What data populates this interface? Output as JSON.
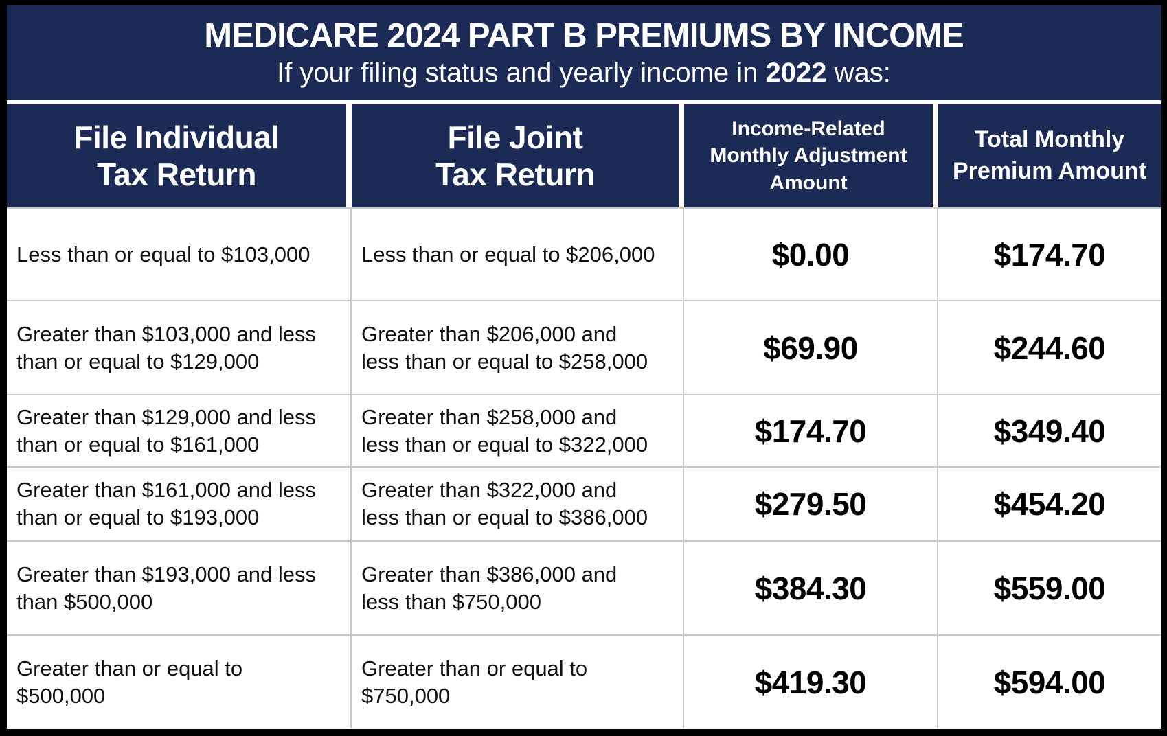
{
  "header": {
    "title": "MEDICARE 2024 PART B PREMIUMS BY INCOME",
    "subtitle_prefix": "If your filing status and yearly income in ",
    "subtitle_year": "2022",
    "subtitle_suffix": " was:"
  },
  "colors": {
    "navy": "#1c2b55",
    "frame": "#000000",
    "grid": "#c9c9c9",
    "text": "#111111",
    "header-text": "#ffffff"
  },
  "chart_data": {
    "type": "table",
    "title": "MEDICARE 2024 PART B PREMIUMS BY INCOME",
    "subtitle": "If your filing status and yearly income in 2022 was:",
    "columns": [
      "File Individual\nTax Return",
      "File Joint\nTax Return",
      "Income-Related\nMonthly Adjustment\nAmount",
      "Total Monthly\nPremium Amount"
    ],
    "rows": [
      {
        "individual": "Less than or equal to $103,000",
        "joint": "Less than or equal to $206,000",
        "adjustment": "$0.00",
        "total": "$174.70"
      },
      {
        "individual": "Greater than $103,000 and less\nthan or equal to $129,000",
        "joint": "Greater than $206,000 and\nless than or equal to $258,000",
        "adjustment": "$69.90",
        "total": "$244.60"
      },
      {
        "individual": "Greater than $129,000 and less\nthan or equal to $161,000",
        "joint": "Greater than $258,000 and\nless than or equal to $322,000",
        "adjustment": "$174.70",
        "total": "$349.40"
      },
      {
        "individual": "Greater than $161,000 and less\nthan or equal to $193,000",
        "joint": "Greater than $322,000 and\nless than or equal to $386,000",
        "adjustment": "$279.50",
        "total": "$454.20"
      },
      {
        "individual": "Greater than $193,000 and less\nthan $500,000",
        "joint": "Greater than $386,000 and\nless than $750,000",
        "adjustment": "$384.30",
        "total": "$559.00"
      },
      {
        "individual": "Greater than or equal to\n$500,000",
        "joint": "Greater than or equal to\n$750,000",
        "adjustment": "$419.30",
        "total": "$594.00"
      }
    ]
  }
}
